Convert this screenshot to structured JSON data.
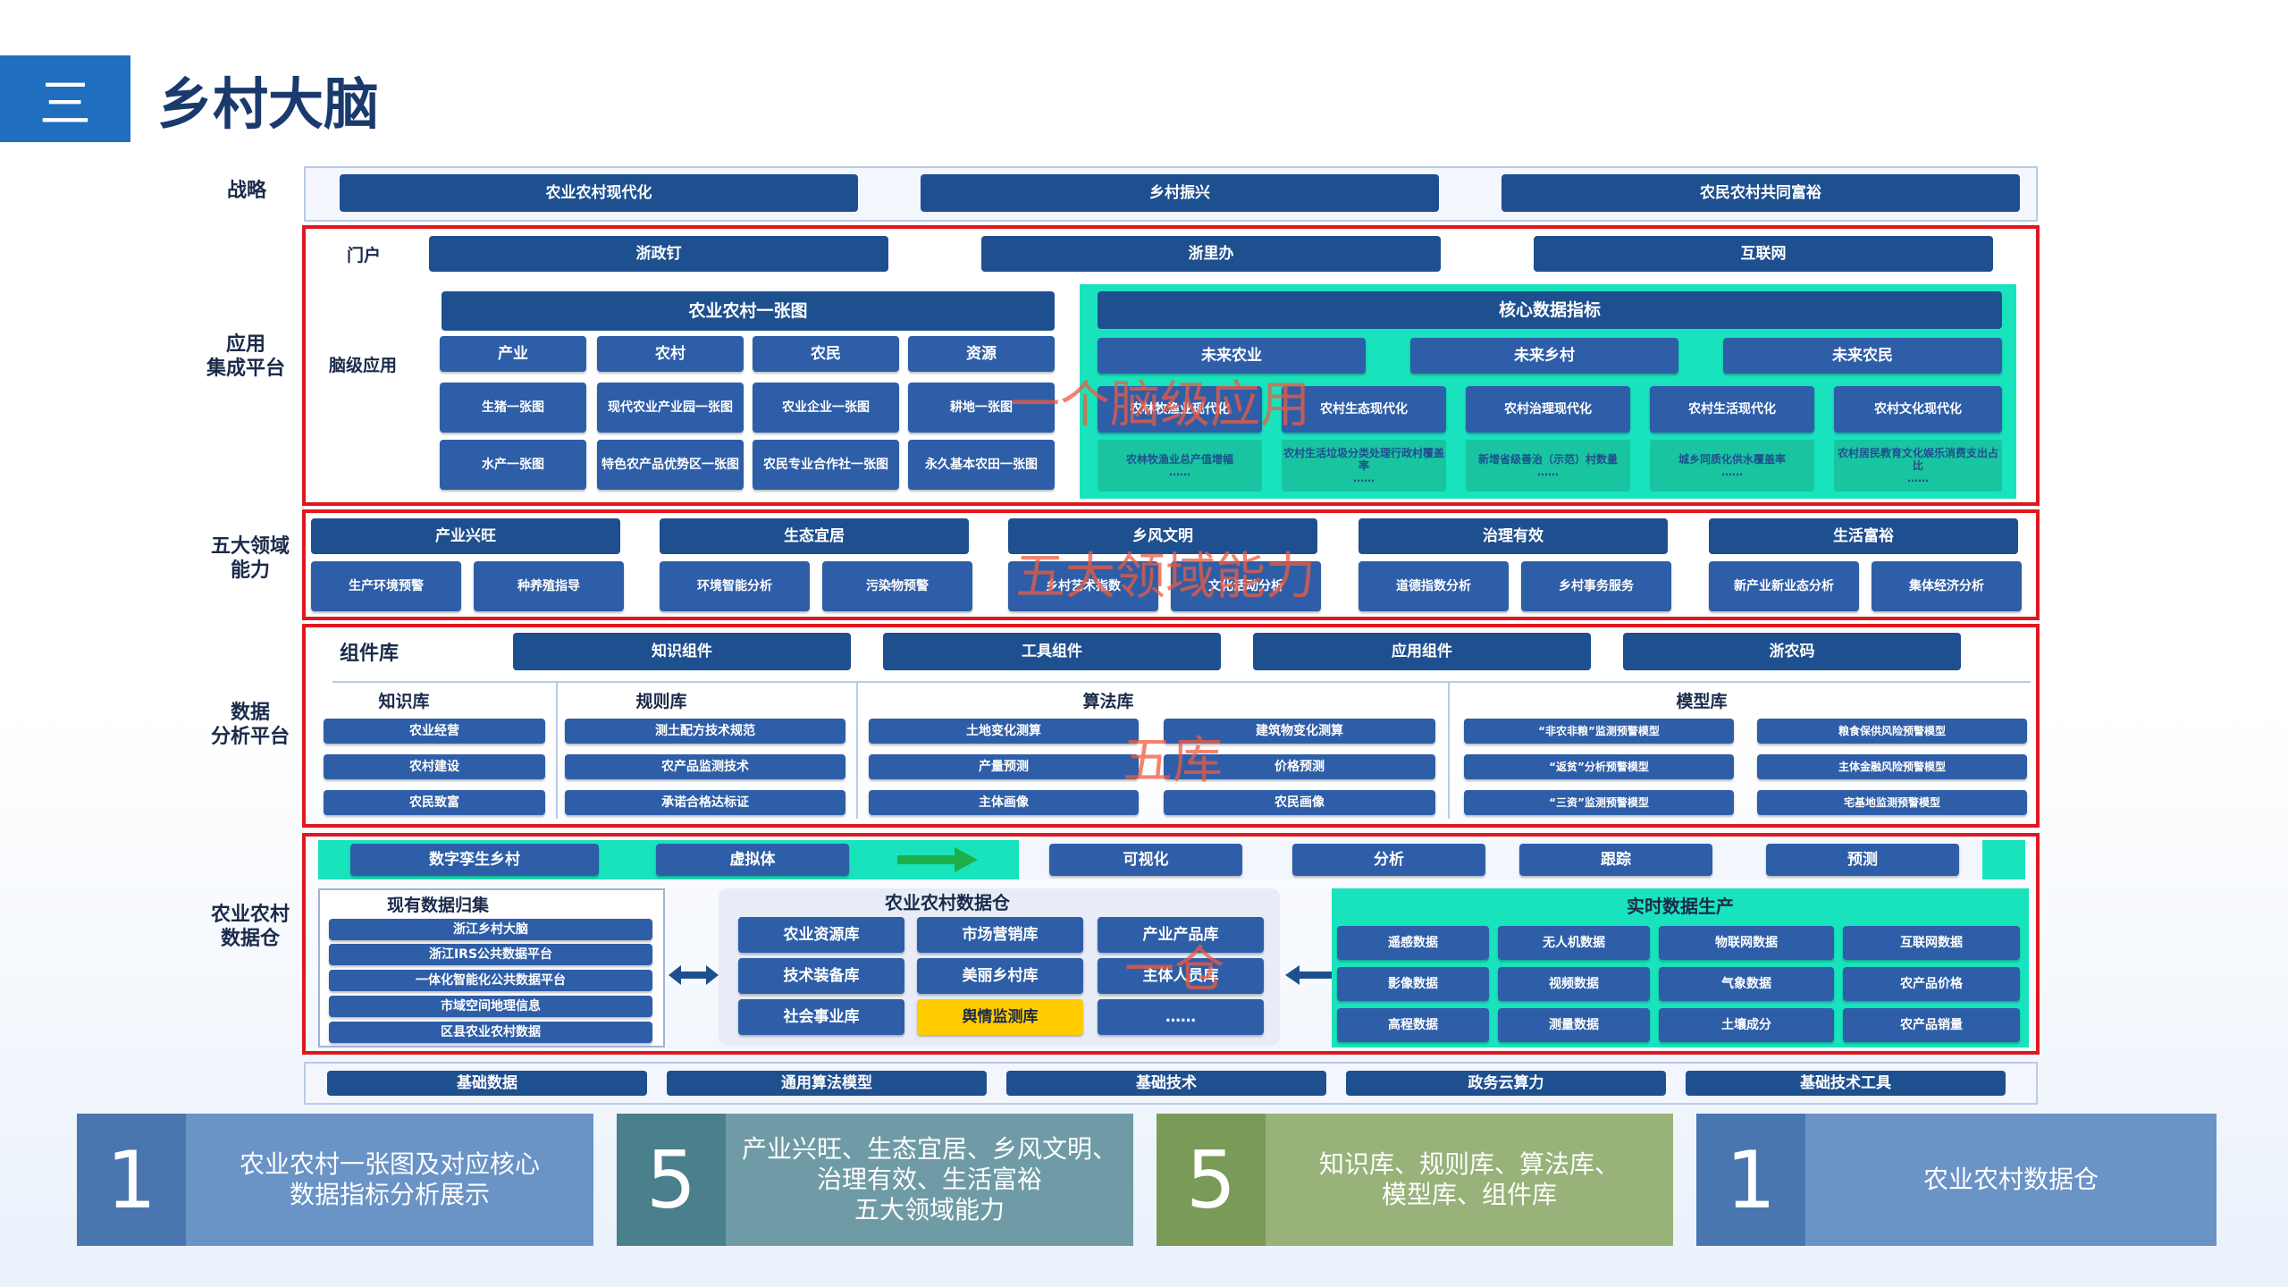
{
  "header": {
    "badge": "三",
    "title": "乡村大脑"
  },
  "rows": {
    "strategy": "战略",
    "portal": "门户",
    "app": "应用\n集成平台",
    "brain": "脑级应用",
    "domain": "五大领域\n能力",
    "analysis": "数据\n分析平台",
    "warehouse": "农业农村\n数据仓"
  },
  "strategy": [
    "农业农村现代化",
    "乡村振兴",
    "农民农村共同富裕"
  ],
  "portal": [
    "浙政钉",
    "浙里办",
    "互联网"
  ],
  "map": {
    "title": "农业农村一张图",
    "tabs": [
      "产业",
      "农村",
      "农民",
      "资源"
    ],
    "r1": [
      "生猪一张图",
      "现代农业产业园一张图",
      "农业企业一张图",
      "耕地一张图"
    ],
    "r2": [
      "水产一张图",
      "特色农产品优势区一张图",
      "农民专业合作社一张图",
      "永久基本农田一张图"
    ]
  },
  "core": {
    "title": "核心数据指标",
    "tabs": [
      "未来农业",
      "未来乡村",
      "未来农民"
    ],
    "mid": [
      "农林牧渔业现代化",
      "农村生态现代化",
      "农村治理现代化",
      "农村生活现代化",
      "农村文化现代化"
    ],
    "bot": [
      "农林牧渔业总产值增幅\n……",
      "农村生活垃圾分类处理行政村覆盖率\n……",
      "新增省级善治（示范）村数量\n……",
      "城乡同质化供水覆盖率\n……",
      "农村居民教育文化娱乐消费支出占比\n……"
    ]
  },
  "overlays": [
    "一个脑级应用",
    "五大领域能力",
    "五库",
    "一仓"
  ],
  "domains": [
    {
      "name": "产业兴旺",
      "items": [
        "生产环境预警",
        "种养殖指导"
      ]
    },
    {
      "name": "生态宜居",
      "items": [
        "环境智能分析",
        "污染物预警"
      ]
    },
    {
      "name": "乡风文明",
      "items": [
        "乡村艺术指数",
        "文化活动分析"
      ]
    },
    {
      "name": "治理有效",
      "items": [
        "道德指数分析",
        "乡村事务服务"
      ]
    },
    {
      "name": "生活富裕",
      "items": [
        "新产业新业态分析",
        "集体经济分析"
      ]
    }
  ],
  "components": {
    "label": "组件库",
    "items": [
      "知识组件",
      "工具组件",
      "应用组件",
      "浙农码"
    ]
  },
  "libs": {
    "knowledge": {
      "title": "知识库",
      "items": [
        "农业经营",
        "农村建设",
        "农民致富"
      ]
    },
    "rules": {
      "title": "规则库",
      "items": [
        "测土配方技术规范",
        "农产品监测技术",
        "承诺合格达标证"
      ]
    },
    "algo": {
      "title": "算法库",
      "left": [
        "土地变化测算",
        "产量预测",
        "主体画像"
      ],
      "right": [
        "建筑物变化测算",
        "价格预测",
        "农民画像"
      ]
    },
    "model": {
      "title": "模型库",
      "left": [
        "“非农非粮”监测预警模型",
        "“返贫”分析预警模型",
        "“三资”监测预警模型"
      ],
      "right": [
        "粮食保供风险预警模型",
        "主体金融风险预警模型",
        "宅基地监测预警模型"
      ]
    }
  },
  "band": [
    "数字孪生乡村",
    "虚拟体",
    "可视化",
    "分析",
    "跟踪",
    "预测"
  ],
  "existing": {
    "title": "现有数据归集",
    "items": [
      "浙江乡村大脑",
      "浙江IRS公共数据平台",
      "一体化智能化公共数据平台",
      "市域空间地理信息",
      "区县农业农村数据"
    ]
  },
  "warehouse": {
    "title": "农业农村数据仓",
    "items": [
      "农业资源库",
      "市场营销库",
      "产业产品库",
      "技术装备库",
      "美丽乡村库",
      "主体人员库",
      "社会事业库",
      "舆情监测库",
      "……"
    ],
    "highlight": "#ffcc00"
  },
  "realtime": {
    "title": "实时数据生产",
    "items": [
      "遥感数据",
      "无人机数据",
      "物联网数据",
      "互联网数据",
      "影像数据",
      "视频数据",
      "气象数据",
      "农产品价格",
      "高程数据",
      "测量数据",
      "土壤成分",
      "农产品销量"
    ]
  },
  "base": [
    "基础数据",
    "通用算法模型",
    "基础技术",
    "政务云算力",
    "基础技术工具"
  ],
  "summary": [
    {
      "num": "1",
      "text": "农业农村一张图及对应核心\n数据指标分析展示",
      "numColor": "#4a76b0",
      "textColor": "#6a93c6"
    },
    {
      "num": "5",
      "text": "产业兴旺、生态宜居、乡风文明、\n治理有效、生活富裕\n五大领域能力",
      "numColor": "#4a7f8c",
      "textColor": "#6f9ba6"
    },
    {
      "num": "5",
      "text": "知识库、规则库、算法库、\n模型库、组件库",
      "numColor": "#7a9a58",
      "textColor": "#98b27a"
    },
    {
      "num": "1",
      "text": "农业农村数据仓",
      "numColor": "#4a76b0",
      "textColor": "#6a93c6"
    }
  ]
}
